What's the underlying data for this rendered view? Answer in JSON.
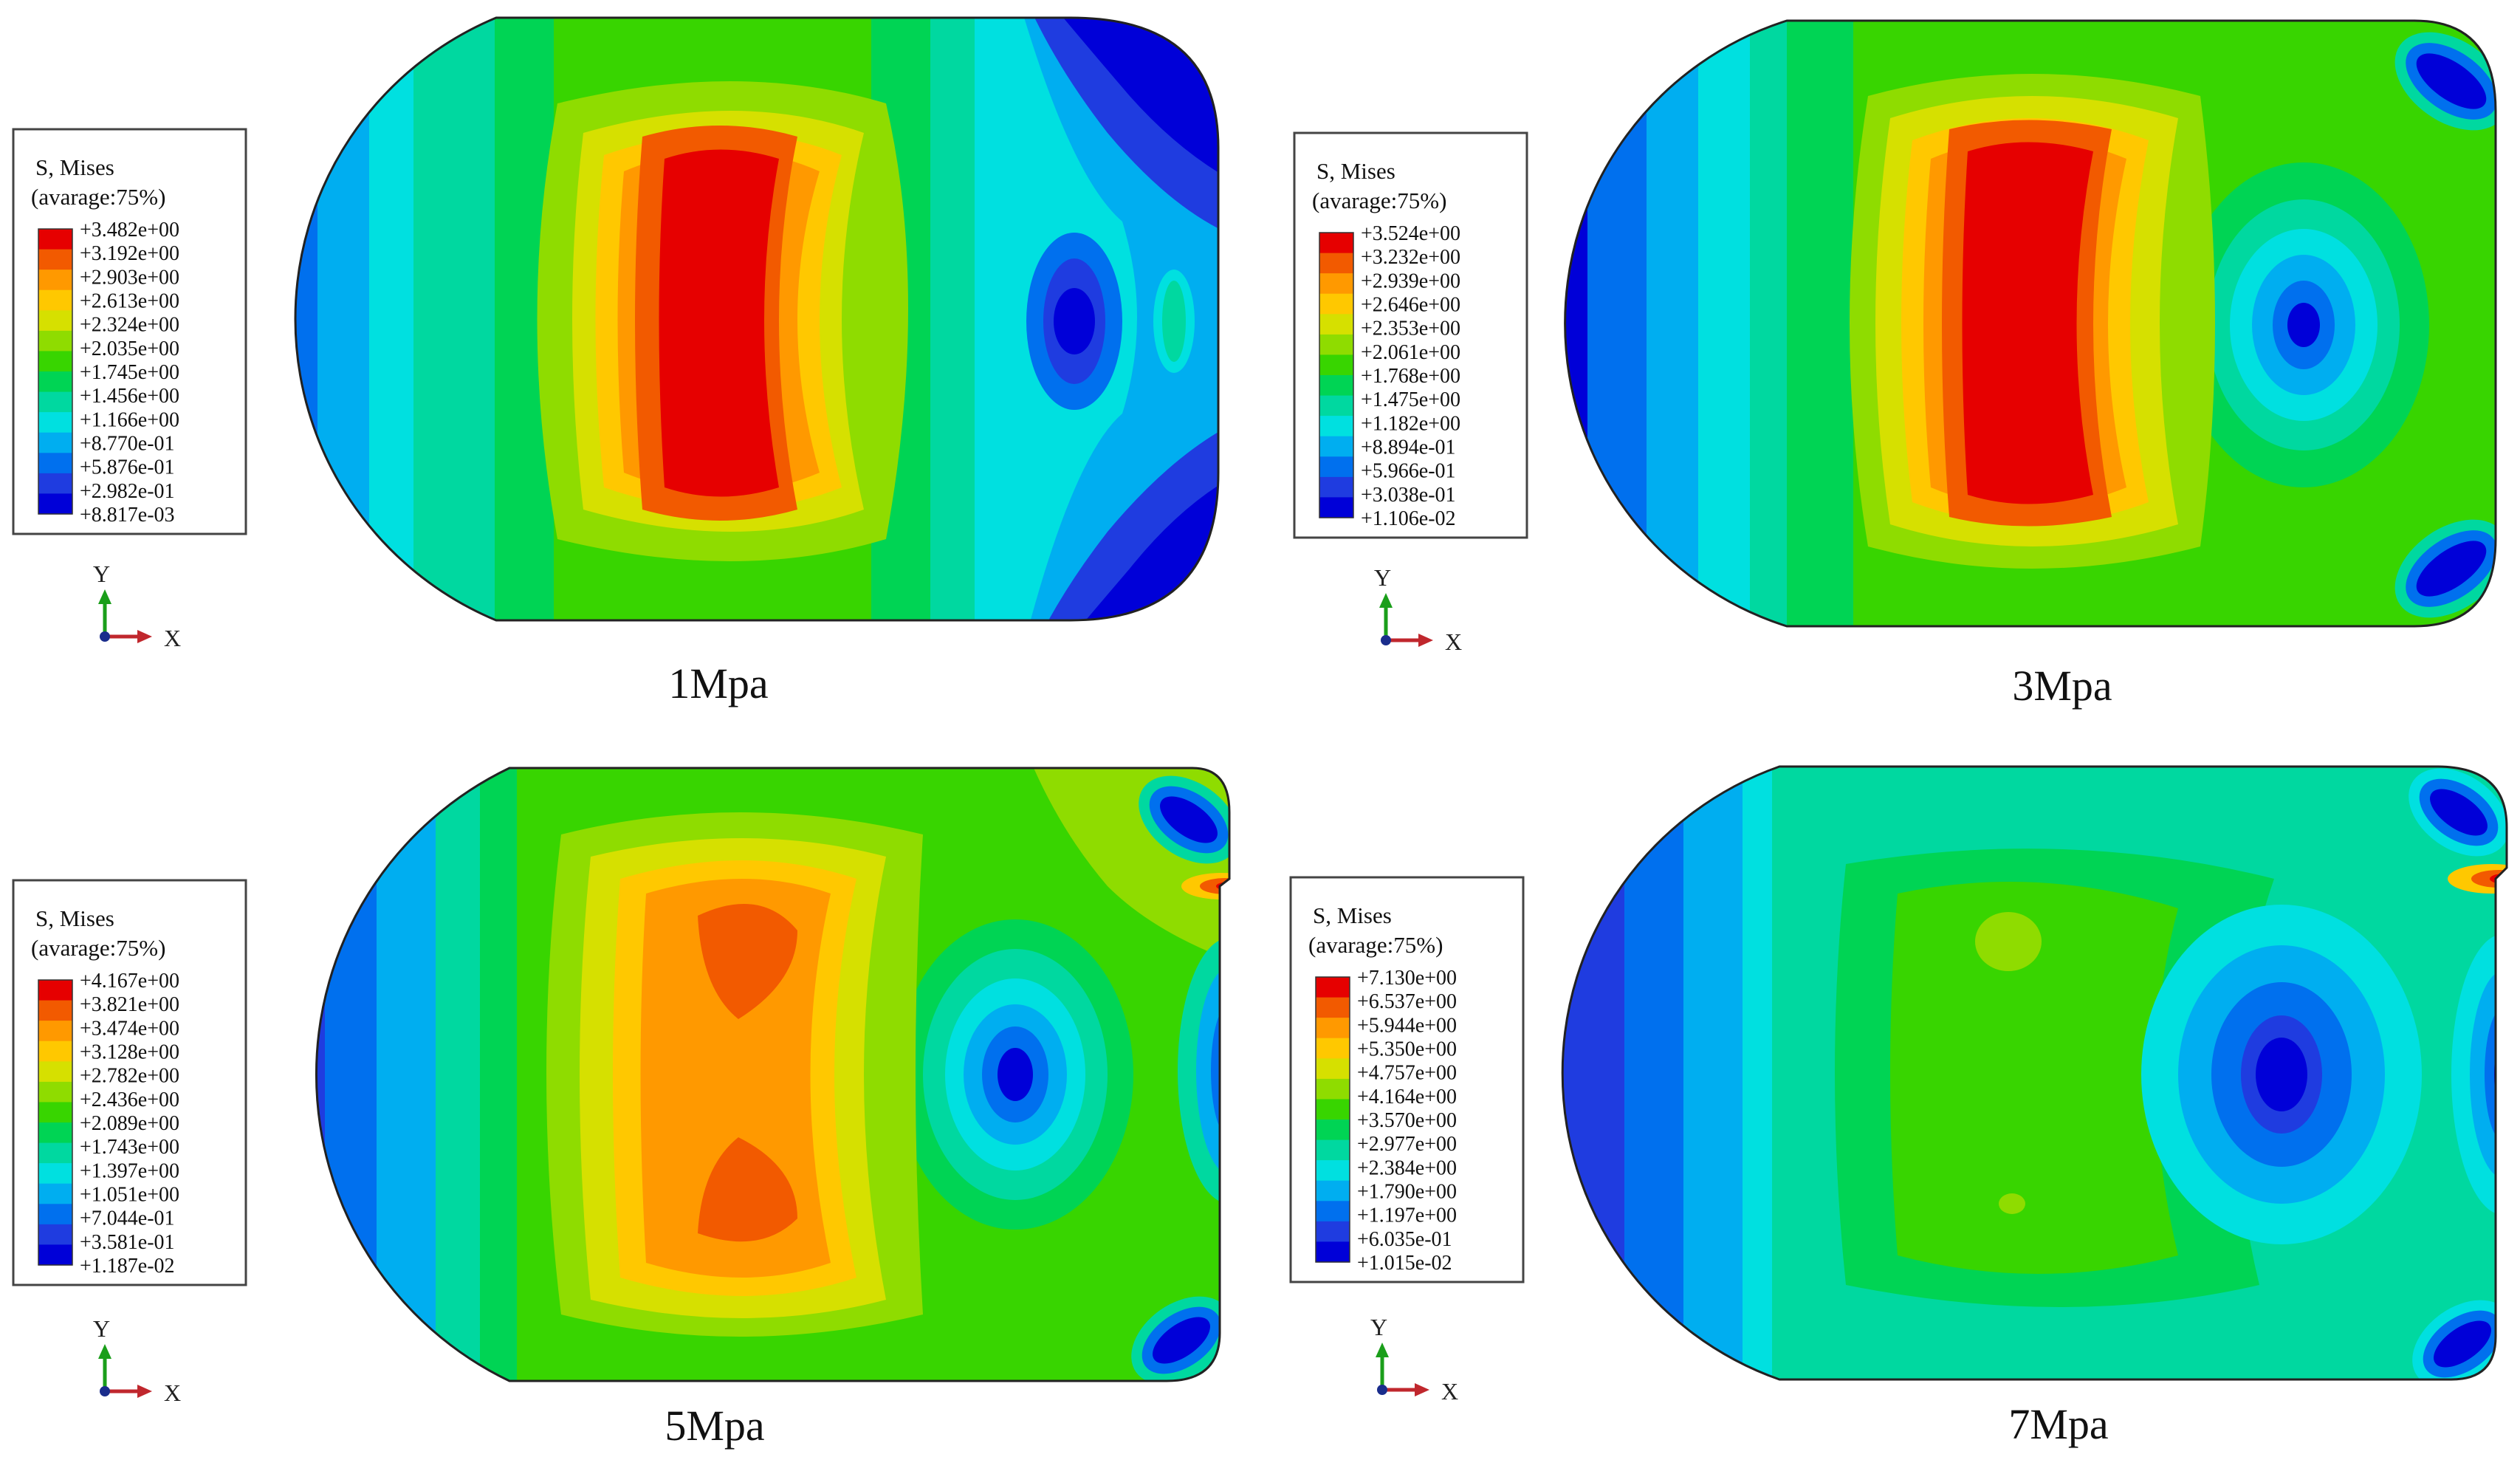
{
  "legend_colors": [
    "#e60000",
    "#f25a00",
    "#ff9900",
    "#ffc800",
    "#d6e000",
    "#8fdc00",
    "#38d500",
    "#00d454",
    "#00d8a0",
    "#00e0e0",
    "#00aef0",
    "#0070ee",
    "#1f3ce0",
    "#0000d8"
  ],
  "axis_labels": {
    "y": "Y",
    "x": "X"
  },
  "panels": [
    {
      "caption": "1Mpa",
      "legend_title": "S, Mises",
      "legend_subtitle": "(avarage:75%)",
      "legend_values": [
        "+3.482e+00",
        "+3.192e+00",
        "+2.903e+00",
        "+2.613e+00",
        "+2.324e+00",
        "+2.035e+00",
        "+1.745e+00",
        "+1.456e+00",
        "+1.166e+00",
        "+8.770e-01",
        "+5.876e-01",
        "+2.982e-01",
        "+8.817e-03"
      ]
    },
    {
      "caption": "3Mpa",
      "legend_title": "S, Mises",
      "legend_subtitle": "(avarage:75%)",
      "legend_values": [
        "+3.524e+00",
        "+3.232e+00",
        "+2.939e+00",
        "+2.646e+00",
        "+2.353e+00",
        "+2.061e+00",
        "+1.768e+00",
        "+1.475e+00",
        "+1.182e+00",
        "+8.894e-01",
        "+5.966e-01",
        "+3.038e-01",
        "+1.106e-02"
      ]
    },
    {
      "caption": "5Mpa",
      "legend_title": "S, Mises",
      "legend_subtitle": "(avarage:75%)",
      "legend_values": [
        "+4.167e+00",
        "+3.821e+00",
        "+3.474e+00",
        "+3.128e+00",
        "+2.782e+00",
        "+2.436e+00",
        "+2.089e+00",
        "+1.743e+00",
        "+1.397e+00",
        "+1.051e+00",
        "+7.044e-01",
        "+3.581e-01",
        "+1.187e-02"
      ]
    },
    {
      "caption": "7Mpa",
      "legend_title": "S, Mises",
      "legend_subtitle": "(avarage:75%)",
      "legend_values": [
        "+7.130e+00",
        "+6.537e+00",
        "+5.944e+00",
        "+5.350e+00",
        "+4.757e+00",
        "+4.164e+00",
        "+3.570e+00",
        "+2.977e+00",
        "+2.384e+00",
        "+1.790e+00",
        "+1.197e+00",
        "+6.035e-01",
        "+1.015e-02"
      ]
    }
  ]
}
